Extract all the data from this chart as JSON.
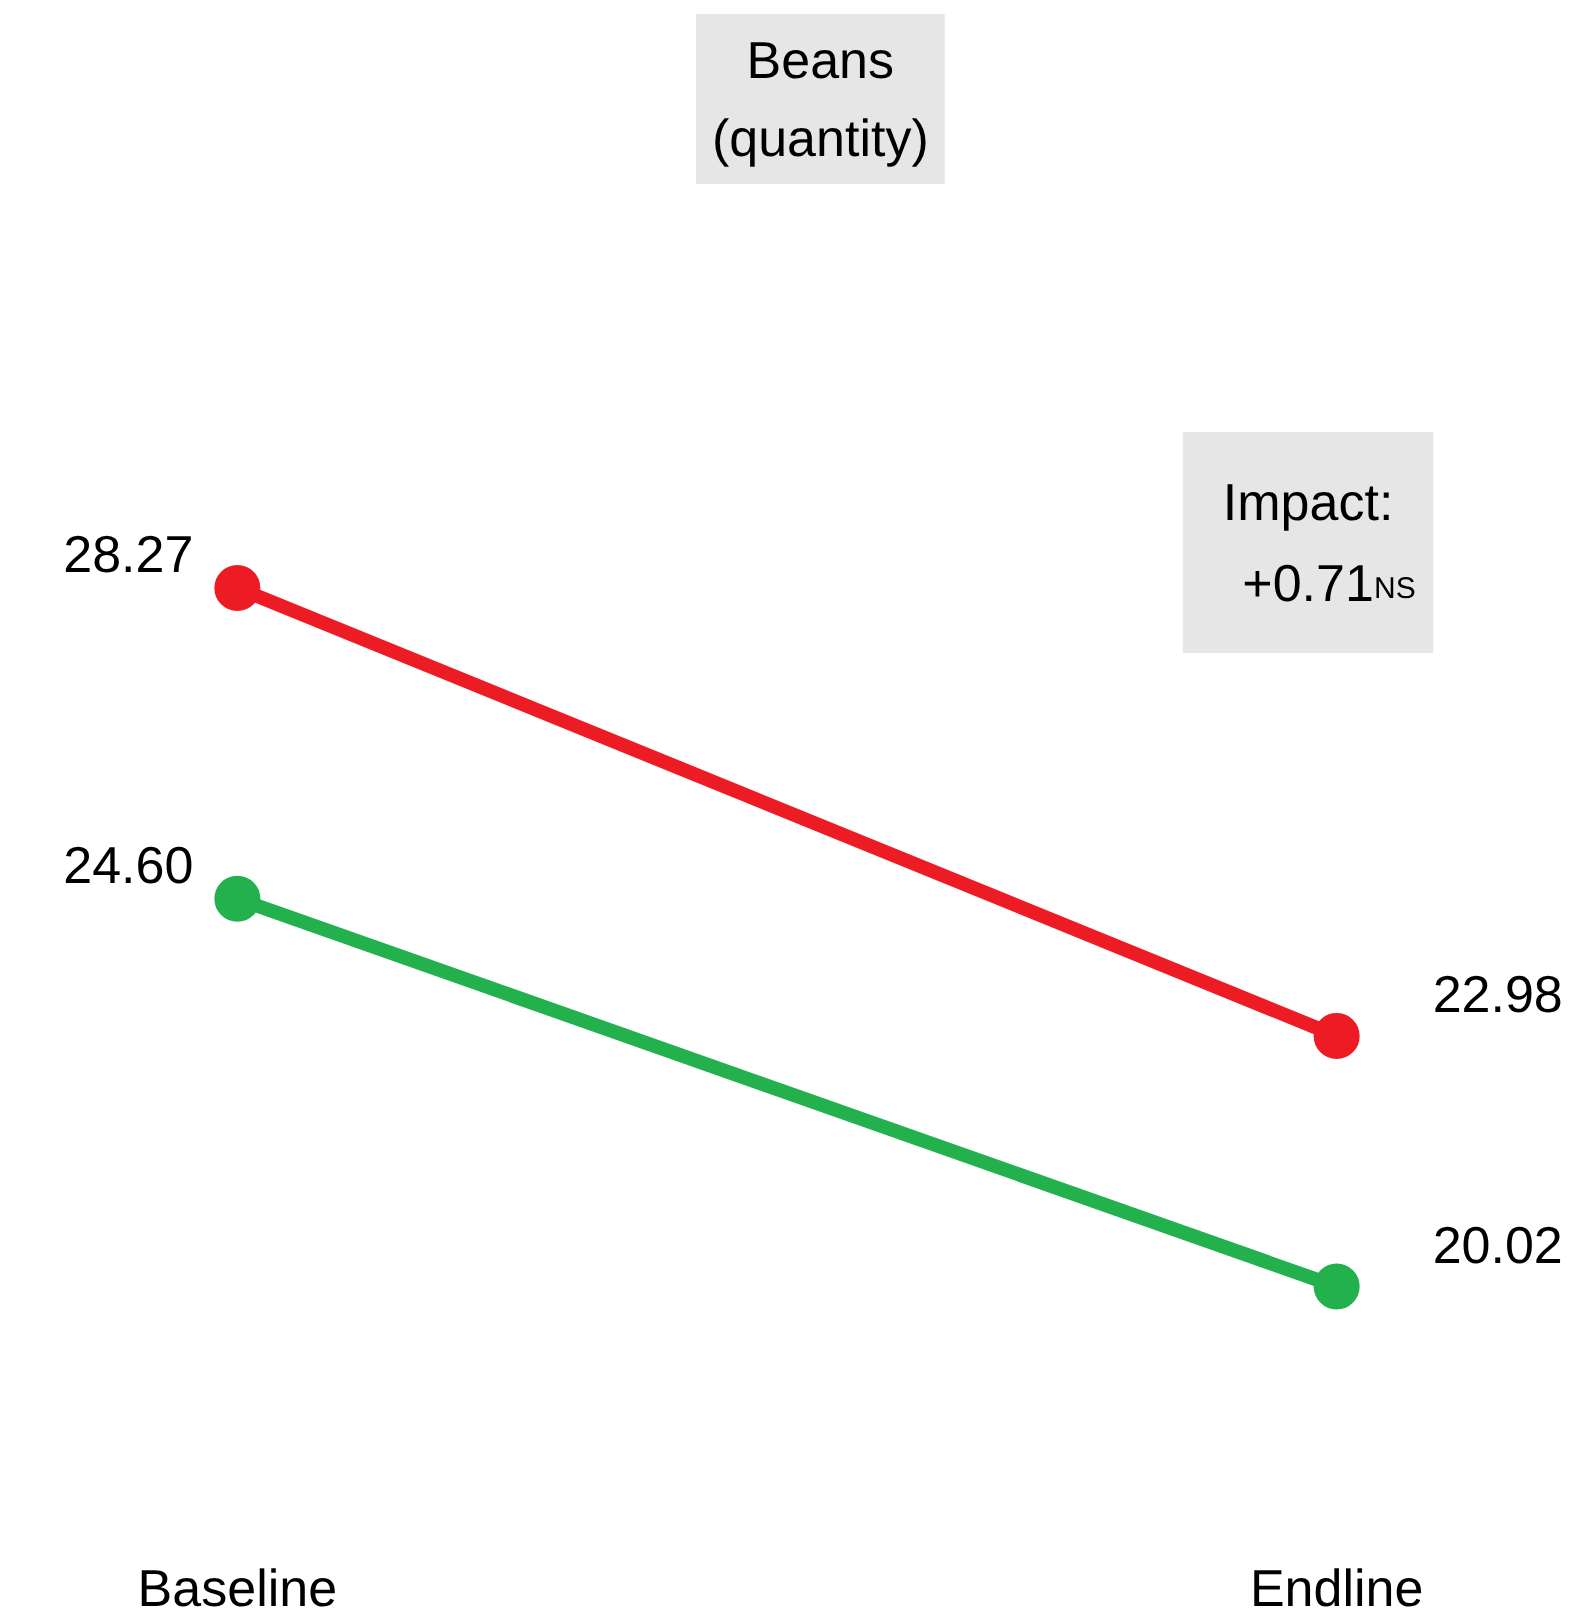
{
  "chart_data": {
    "type": "line",
    "title": "Beans (quantity)",
    "categories": [
      "Baseline",
      "Endline"
    ],
    "series": [
      {
        "color": "#ed1c24",
        "values": [
          28.27,
          22.98
        ],
        "value_labels": [
          "28.27",
          "22.98"
        ]
      },
      {
        "color": "#22b14c",
        "values": [
          24.6,
          20.02
        ],
        "value_labels": [
          "24.60",
          "20.02"
        ]
      }
    ],
    "marker": "circle",
    "annotations": [
      "Impact: +0.71$^{NS}$"
    ]
  }
}
